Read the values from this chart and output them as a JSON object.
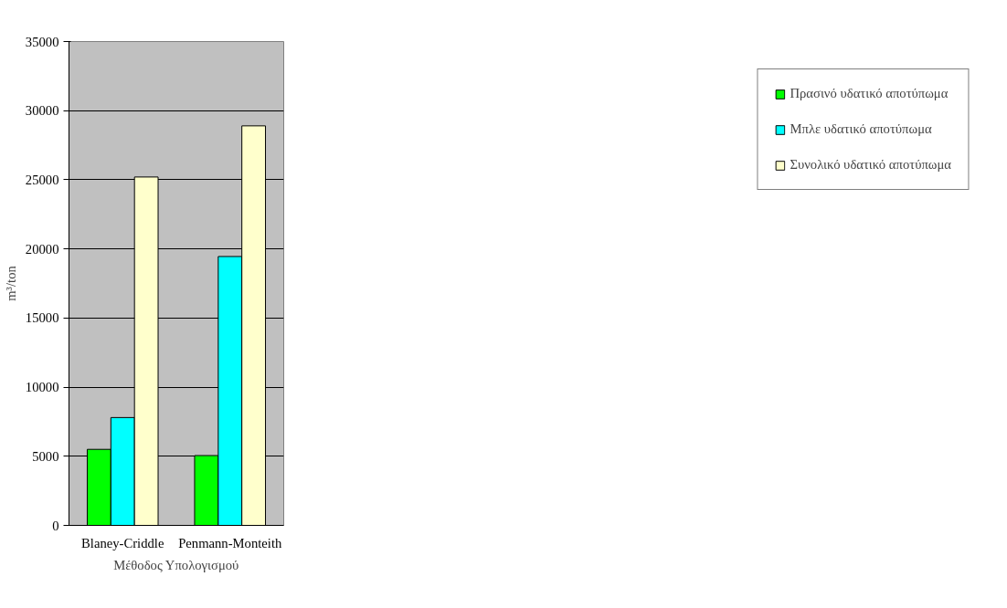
{
  "chart_data": {
    "type": "bar",
    "categories": [
      "Blaney-Criddle",
      "Penmann-Monteith"
    ],
    "series": [
      {
        "name": "Πρασινό υδατικό αποτύπωμα",
        "color": "#00ff00",
        "values": [
          5500,
          5050
        ]
      },
      {
        "name": "Μπλε υδατικό αποτύπωμα",
        "color": "#00ffff",
        "values": [
          7800,
          19450
        ]
      },
      {
        "name": "Συνολικό υδατικό αποτύπωμα",
        "color": "#ffffcc",
        "values": [
          25200,
          28900
        ]
      }
    ],
    "xlabel": "Μέθοδος Υπολογισμού",
    "ylabel": "m³/ton",
    "ylim": [
      0,
      35000
    ],
    "yticks": [
      0,
      5000,
      10000,
      15000,
      20000,
      25000,
      30000,
      35000
    ],
    "grid": "y",
    "legend": "right"
  }
}
